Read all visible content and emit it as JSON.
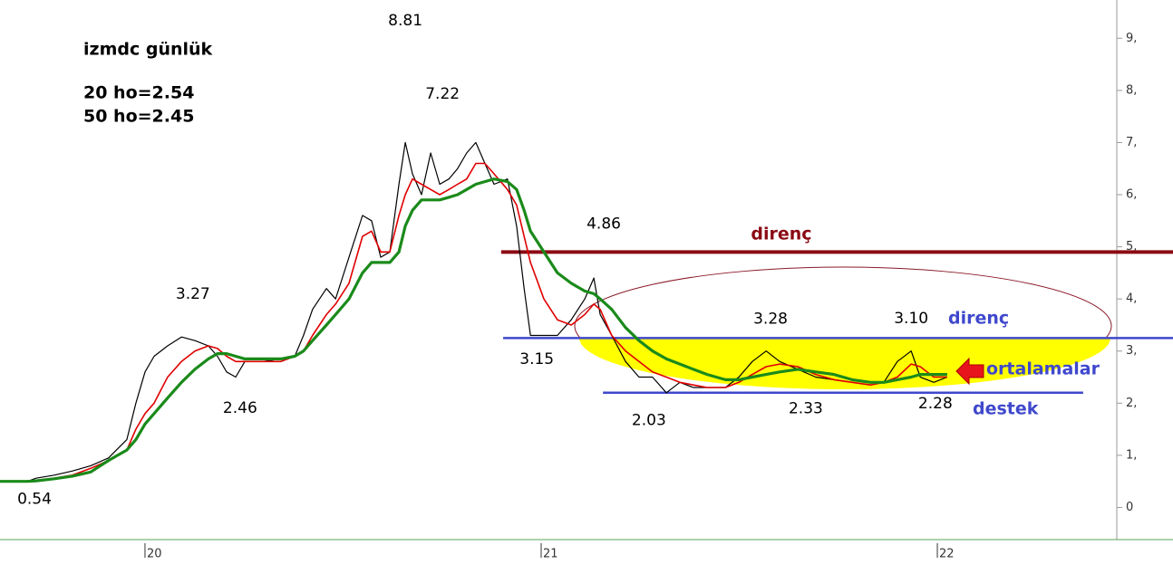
{
  "chart_data": {
    "type": "line",
    "title": "izmdc günlük",
    "x": [
      2019.634,
      2019.703,
      2019.725,
      2019.771,
      2019.817,
      2019.863,
      2019.908,
      2019.954,
      2019.977,
      2020.0,
      2020.023,
      2020.057,
      2020.092,
      2020.126,
      2020.16,
      2020.183,
      2020.206,
      2020.229,
      2020.252,
      2020.297,
      2020.343,
      2020.378,
      2020.4,
      2020.423,
      2020.458,
      2020.481,
      2020.515,
      2020.549,
      2020.572,
      2020.595,
      2020.618,
      2020.641,
      2020.657,
      2020.675,
      2020.698,
      2020.721,
      2020.744,
      2020.767,
      2020.789,
      2020.812,
      2020.835,
      2020.858,
      2020.881,
      2020.915,
      2020.938,
      2020.957,
      2020.973,
      2021.007,
      2021.041,
      2021.076,
      2021.11,
      2021.133,
      2021.149,
      2021.178,
      2021.213,
      2021.247,
      2021.281,
      2021.316,
      2021.35,
      2021.384,
      2021.419,
      2021.465,
      2021.499,
      2021.533,
      2021.568,
      2021.602,
      2021.648,
      2021.693,
      2021.739,
      2021.785,
      2021.831,
      2021.865,
      2021.899,
      2021.934,
      2021.957,
      2021.991,
      2022.025
    ],
    "series": [
      {
        "color": "#000000",
        "values": [
          0.5,
          0.5,
          0.56,
          0.62,
          0.7,
          0.8,
          0.95,
          1.3,
          2.0,
          2.6,
          2.9,
          3.1,
          3.27,
          3.2,
          3.1,
          2.9,
          2.6,
          2.5,
          2.8,
          2.8,
          2.85,
          2.9,
          3.3,
          3.8,
          4.2,
          4.0,
          4.8,
          5.6,
          5.5,
          4.8,
          4.9,
          6.2,
          7.0,
          6.4,
          6.0,
          6.8,
          6.2,
          6.3,
          6.5,
          6.8,
          7.0,
          6.6,
          6.2,
          6.3,
          5.4,
          4.2,
          3.3,
          3.3,
          3.3,
          3.6,
          4.0,
          4.4,
          3.7,
          3.3,
          2.8,
          2.5,
          2.5,
          2.2,
          2.4,
          2.3,
          2.3,
          2.3,
          2.5,
          2.8,
          3.0,
          2.8,
          2.65,
          2.5,
          2.45,
          2.4,
          2.35,
          2.4,
          2.8,
          3.0,
          2.5,
          2.4,
          2.5
        ]
      },
      {
        "name": "20 ho=2.54",
        "color": "#e00000",
        "values": [
          0.5,
          0.5,
          0.52,
          0.56,
          0.62,
          0.75,
          0.9,
          1.1,
          1.5,
          1.8,
          2.0,
          2.5,
          2.8,
          3.0,
          3.1,
          3.05,
          2.9,
          2.8,
          2.8,
          2.8,
          2.8,
          2.9,
          3.0,
          3.3,
          3.7,
          3.9,
          4.3,
          5.2,
          5.3,
          4.9,
          4.9,
          5.6,
          6.0,
          6.3,
          6.2,
          6.1,
          6.0,
          6.1,
          6.2,
          6.3,
          6.6,
          6.6,
          6.4,
          6.1,
          5.8,
          5.2,
          4.7,
          4.0,
          3.6,
          3.5,
          3.7,
          3.9,
          3.8,
          3.3,
          3.0,
          2.8,
          2.6,
          2.5,
          2.4,
          2.35,
          2.3,
          2.3,
          2.4,
          2.55,
          2.7,
          2.75,
          2.7,
          2.55,
          2.45,
          2.4,
          2.35,
          2.4,
          2.5,
          2.75,
          2.7,
          2.5,
          2.5
        ]
      },
      {
        "name": "50 ho=2.45",
        "color": "#1a8a1a",
        "values": [
          0.5,
          0.5,
          0.51,
          0.55,
          0.6,
          0.68,
          0.9,
          1.1,
          1.3,
          1.6,
          1.8,
          2.1,
          2.4,
          2.65,
          2.85,
          2.95,
          2.95,
          2.9,
          2.85,
          2.85,
          2.85,
          2.9,
          3.0,
          3.2,
          3.5,
          3.7,
          4.0,
          4.5,
          4.7,
          4.7,
          4.7,
          4.9,
          5.4,
          5.7,
          5.9,
          5.9,
          5.9,
          5.95,
          6.0,
          6.1,
          6.2,
          6.25,
          6.3,
          6.25,
          6.1,
          5.7,
          5.3,
          4.9,
          4.5,
          4.3,
          4.15,
          4.1,
          4.0,
          3.8,
          3.45,
          3.2,
          3.0,
          2.85,
          2.75,
          2.65,
          2.55,
          2.45,
          2.45,
          2.5,
          2.55,
          2.6,
          2.65,
          2.6,
          2.55,
          2.45,
          2.4,
          2.4,
          2.45,
          2.5,
          2.55,
          2.55,
          2.55
        ]
      }
    ],
    "annotations": [
      {
        "x": 2020.657,
        "value": 8.81,
        "label": "8.81"
      },
      {
        "x": 2020.751,
        "value": 7.22,
        "label": "7.22"
      },
      {
        "x": 2020.121,
        "value": 3.27,
        "label": "3.27"
      },
      {
        "x": 2020.24,
        "value": 2.46,
        "label": "2.46"
      },
      {
        "x": 2019.721,
        "value": 0.54,
        "label": "0.54"
      },
      {
        "x": 2020.989,
        "value": 3.15,
        "label": "3.15"
      },
      {
        "x": 2021.158,
        "value": 4.86,
        "label": "4.86"
      },
      {
        "x": 2021.272,
        "value": 2.03,
        "label": "2.03"
      },
      {
        "x": 2021.579,
        "value": 3.28,
        "label": "3.28"
      },
      {
        "x": 2021.668,
        "value": 2.33,
        "label": "2.33"
      },
      {
        "x": 2021.934,
        "value": 3.1,
        "label": "3.10"
      },
      {
        "x": 2021.995,
        "value": 2.28,
        "label": "2.28"
      }
    ],
    "levels": [
      {
        "name": "direnç",
        "value": 4.9,
        "color": "#8b0a14",
        "x": [
          2020.899,
          2022.595
        ]
      },
      {
        "name": "direnç",
        "value": 3.25,
        "color": "#3f48cc",
        "x": [
          2020.904,
          2022.595
        ]
      },
      {
        "name": "destek",
        "value": 2.2,
        "color": "#3f48cc",
        "x": [
          2021.156,
          2022.368
        ]
      }
    ],
    "arrow_label": "ortalamalar",
    "xlim": [
      2019.634,
      2022.453
    ],
    "xticks": [
      {
        "value": 2020,
        "label": "20"
      },
      {
        "value": 2021,
        "label": "21"
      },
      {
        "value": 2022,
        "label": "22"
      }
    ],
    "ylim": [
      -0.6,
      9.7
    ],
    "yticks": [
      0,
      {
        "value": 1,
        "label": "1,"
      },
      {
        "value": 2,
        "label": "2,"
      },
      {
        "value": 3,
        "label": "3,"
      },
      {
        "value": 4,
        "label": "4,"
      },
      {
        "value": 5,
        "label": "5,"
      },
      {
        "value": 6,
        "label": "6,"
      },
      {
        "value": 7,
        "label": "7,"
      },
      {
        "value": 8,
        "label": "8,"
      },
      {
        "value": 9,
        "label": "9,"
      }
    ]
  }
}
